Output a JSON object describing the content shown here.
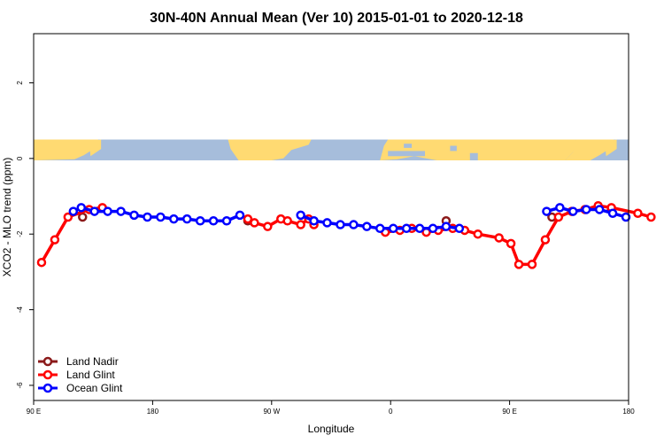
{
  "chart_data": {
    "type": "line",
    "title": "30N-40N Annual Mean (Ver 10)   2015-01-01 to 2020-12-18",
    "xlabel": "Longitude",
    "ylabel": "XCO2 - MLO trend (ppm)",
    "x_tick_values": [
      90,
      180,
      270,
      360,
      450,
      540
    ],
    "x_tick_labels": [
      "90 E",
      "180",
      "90 W",
      "0",
      "90 E",
      "180"
    ],
    "y_tick_values": [
      2,
      0,
      -2,
      -4,
      -6
    ],
    "y_tick_labels": [
      "2",
      "0",
      "-2",
      "-4",
      "-6"
    ],
    "xlim": [
      90,
      540
    ],
    "ylim": [
      -6.4,
      3.3
    ],
    "grid": false,
    "legend_position": "bottom-left",
    "map_strip": {
      "ymin": -0.05,
      "ymax": 0.5,
      "ocean_color": "#A6BDDB",
      "land_color": "#FFDA72"
    },
    "series": [
      {
        "name": "Land Nadir",
        "color": "#8B1A1A",
        "x": [
          127,
          252,
          402,
          482,
          527
        ],
        "y": [
          -1.55,
          -1.65,
          -1.65,
          -1.55,
          -1.35
        ]
      },
      {
        "name": "Land Glint",
        "color": "#FF0000",
        "x": [
          96,
          106,
          116,
          132,
          142,
          252,
          257,
          267,
          277,
          282,
          292,
          298,
          302,
          356,
          367,
          376,
          387,
          396,
          407,
          416,
          426,
          442,
          451,
          457,
          467,
          477,
          487,
          497,
          507,
          517,
          527,
          547,
          557
        ],
        "y": [
          -2.75,
          -2.15,
          -1.55,
          -1.35,
          -1.3,
          -1.6,
          -1.7,
          -1.8,
          -1.6,
          -1.65,
          -1.75,
          -1.6,
          -1.75,
          -1.95,
          -1.9,
          -1.85,
          -1.95,
          -1.9,
          -1.85,
          -1.9,
          -2.0,
          -2.1,
          -2.25,
          -2.8,
          -2.8,
          -2.15,
          -1.55,
          -1.4,
          -1.35,
          -1.25,
          -1.3,
          -1.45,
          -1.55
        ]
      },
      {
        "name": "Ocean Glint",
        "color": "#0000FF",
        "x": [
          120,
          126,
          136,
          146,
          156,
          166,
          176,
          186,
          196,
          206,
          216,
          226,
          236,
          246,
          292,
          302,
          312,
          322,
          332,
          342,
          352,
          362,
          372,
          382,
          392,
          402,
          412,
          478,
          488,
          498,
          508,
          518,
          528,
          538
        ],
        "y": [
          -1.4,
          -1.3,
          -1.4,
          -1.4,
          -1.4,
          -1.5,
          -1.55,
          -1.55,
          -1.6,
          -1.6,
          -1.65,
          -1.65,
          -1.65,
          -1.5,
          -1.5,
          -1.65,
          -1.7,
          -1.75,
          -1.75,
          -1.8,
          -1.85,
          -1.85,
          -1.85,
          -1.85,
          -1.85,
          -1.8,
          -1.85,
          -1.4,
          -1.3,
          -1.4,
          -1.35,
          -1.35,
          -1.45,
          -1.55
        ]
      }
    ]
  }
}
